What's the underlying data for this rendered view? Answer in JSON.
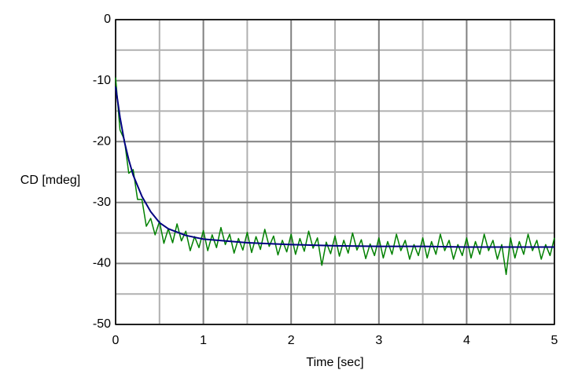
{
  "chart_data": {
    "type": "line",
    "xlabel": "Time [sec]",
    "ylabel": "CD [mdeg]",
    "xlim": [
      0,
      5
    ],
    "xticks": [
      0,
      1,
      2,
      3,
      4,
      5
    ],
    "x_minor_ticks": [
      0.5,
      1.5,
      2.5,
      3.5,
      4.5
    ],
    "ylim": [
      -50,
      0
    ],
    "yticks": [
      0,
      -10,
      -20,
      -30,
      -40,
      -50
    ],
    "y_minor_ticks": [
      -5,
      -15,
      -25,
      -35,
      -45
    ],
    "grid": true,
    "series": [
      {
        "color": "#008000",
        "x": [
          0,
          0.05,
          0.1,
          0.15,
          0.2,
          0.25,
          0.3,
          0.35,
          0.4,
          0.45,
          0.5,
          0.55,
          0.6,
          0.65,
          0.7,
          0.75,
          0.8,
          0.85,
          0.9,
          0.95,
          1,
          1.05,
          1.1,
          1.15,
          1.2,
          1.25,
          1.3,
          1.35,
          1.4,
          1.45,
          1.5,
          1.55,
          1.6,
          1.65,
          1.7,
          1.75,
          1.8,
          1.85,
          1.9,
          1.95,
          2,
          2.05,
          2.1,
          2.15,
          2.2,
          2.25,
          2.3,
          2.35,
          2.4,
          2.45,
          2.5,
          2.55,
          2.6,
          2.65,
          2.7,
          2.75,
          2.8,
          2.85,
          2.9,
          2.95,
          3,
          3.05,
          3.1,
          3.15,
          3.2,
          3.25,
          3.3,
          3.35,
          3.4,
          3.45,
          3.5,
          3.55,
          3.6,
          3.65,
          3.7,
          3.75,
          3.8,
          3.85,
          3.9,
          3.95,
          4,
          4.05,
          4.1,
          4.15,
          4.2,
          4.25,
          4.3,
          4.35,
          4.4,
          4.45,
          4.5,
          4.55,
          4.6,
          4.65,
          4.7,
          4.75,
          4.8,
          4.85,
          4.9,
          4.95,
          5
        ],
        "values": [
          -9.5,
          -18.1,
          -19.7,
          -25.2,
          -24.6,
          -29.5,
          -29.5,
          -33.9,
          -32.6,
          -35.3,
          -33.1,
          -36.7,
          -34.3,
          -36.6,
          -33.5,
          -36.3,
          -34.7,
          -37.9,
          -35.6,
          -37.4,
          -34.6,
          -37.9,
          -35.3,
          -37.4,
          -34.1,
          -36.9,
          -35.2,
          -38.3,
          -35.9,
          -37.8,
          -34.9,
          -38.2,
          -35.6,
          -37.7,
          -34.4,
          -37.2,
          -35.5,
          -38.6,
          -36.2,
          -38.1,
          -35.2,
          -38.5,
          -35.9,
          -38.0,
          -34.7,
          -37.5,
          -35.8,
          -40.3,
          -36.5,
          -38.4,
          -35.5,
          -38.8,
          -36.2,
          -38.3,
          -35.0,
          -37.8,
          -36.1,
          -39.2,
          -36.8,
          -38.7,
          -35.8,
          -39.1,
          -36.4,
          -38.5,
          -35.2,
          -37.9,
          -36.2,
          -39.3,
          -36.9,
          -38.7,
          -35.8,
          -39.1,
          -36.4,
          -38.5,
          -35.2,
          -37.9,
          -36.2,
          -39.3,
          -36.9,
          -38.7,
          -35.8,
          -39.1,
          -36.4,
          -38.5,
          -35.2,
          -37.9,
          -36.2,
          -39.3,
          -36.9,
          -41.8,
          -35.8,
          -39.1,
          -36.4,
          -38.5,
          -35.2,
          -37.9,
          -36.2,
          -39.3,
          -36.9,
          -38.7,
          -35.8
        ]
      },
      {
        "color": "#000080",
        "x": [
          0,
          0.05,
          0.1,
          0.15,
          0.2,
          0.3,
          0.4,
          0.5,
          0.6,
          0.8,
          1,
          1.5,
          2,
          2.5,
          3,
          3.5,
          4,
          4.5,
          5
        ],
        "values": [
          -11,
          -16,
          -20,
          -23,
          -25.5,
          -29,
          -31.5,
          -33.3,
          -34.3,
          -35.4,
          -36,
          -36.6,
          -36.9,
          -37.1,
          -37.2,
          -37.2,
          -37.3,
          -37.3,
          -37.3
        ]
      }
    ]
  }
}
